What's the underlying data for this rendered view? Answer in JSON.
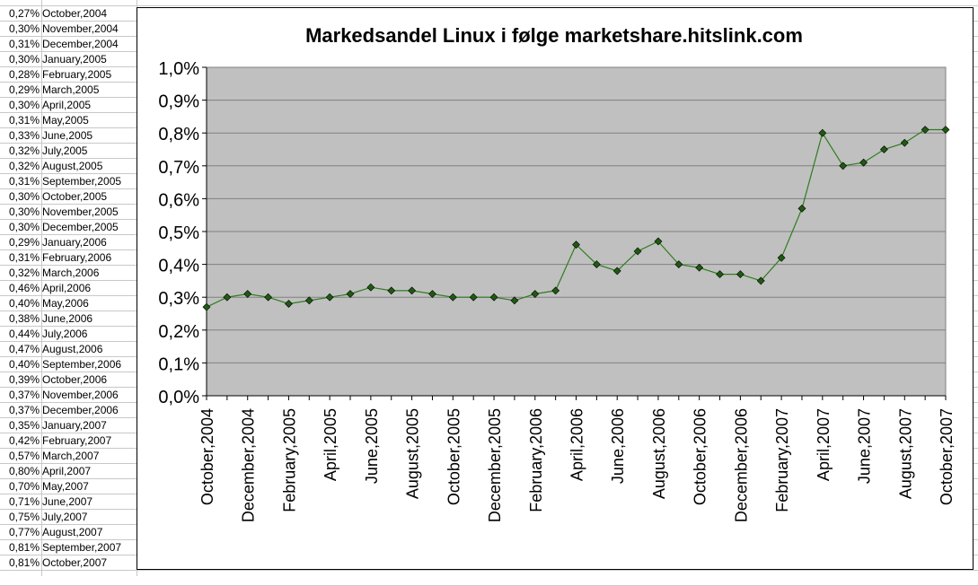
{
  "sheet": {
    "rows": [
      {
        "pct": "0,27%",
        "month": "October,2004"
      },
      {
        "pct": "0,30%",
        "month": "November,2004"
      },
      {
        "pct": "0,31%",
        "month": "December,2004"
      },
      {
        "pct": "0,30%",
        "month": "January,2005"
      },
      {
        "pct": "0,28%",
        "month": "February,2005"
      },
      {
        "pct": "0,29%",
        "month": "March,2005"
      },
      {
        "pct": "0,30%",
        "month": "April,2005"
      },
      {
        "pct": "0,31%",
        "month": "May,2005"
      },
      {
        "pct": "0,33%",
        "month": "June,2005"
      },
      {
        "pct": "0,32%",
        "month": "July,2005"
      },
      {
        "pct": "0,32%",
        "month": "August,2005"
      },
      {
        "pct": "0,31%",
        "month": "September,2005"
      },
      {
        "pct": "0,30%",
        "month": "October,2005"
      },
      {
        "pct": "0,30%",
        "month": "November,2005"
      },
      {
        "pct": "0,30%",
        "month": "December,2005"
      },
      {
        "pct": "0,29%",
        "month": "January,2006"
      },
      {
        "pct": "0,31%",
        "month": "February,2006"
      },
      {
        "pct": "0,32%",
        "month": "March,2006"
      },
      {
        "pct": "0,46%",
        "month": "April,2006"
      },
      {
        "pct": "0,40%",
        "month": "May,2006"
      },
      {
        "pct": "0,38%",
        "month": "June,2006"
      },
      {
        "pct": "0,44%",
        "month": "July,2006"
      },
      {
        "pct": "0,47%",
        "month": "August,2006"
      },
      {
        "pct": "0,40%",
        "month": "September,2006"
      },
      {
        "pct": "0,39%",
        "month": "October,2006"
      },
      {
        "pct": "0,37%",
        "month": "November,2006"
      },
      {
        "pct": "0,37%",
        "month": "December,2006"
      },
      {
        "pct": "0,35%",
        "month": "January,2007"
      },
      {
        "pct": "0,42%",
        "month": "February,2007"
      },
      {
        "pct": "0,57%",
        "month": "March,2007"
      },
      {
        "pct": "0,80%",
        "month": "April,2007"
      },
      {
        "pct": "0,70%",
        "month": "May,2007"
      },
      {
        "pct": "0,71%",
        "month": "June,2007"
      },
      {
        "pct": "0,75%",
        "month": "July,2007"
      },
      {
        "pct": "0,77%",
        "month": "August,2007"
      },
      {
        "pct": "0,81%",
        "month": "September,2007"
      },
      {
        "pct": "0,81%",
        "month": "October,2007"
      }
    ]
  },
  "chart_data": {
    "type": "line",
    "title": "Markedsandel Linux i følge marketshare.hitslink.com",
    "xlabel": "",
    "ylabel": "",
    "categories": [
      "October,2004",
      "November,2004",
      "December,2004",
      "January,2005",
      "February,2005",
      "March,2005",
      "April,2005",
      "May,2005",
      "June,2005",
      "July,2005",
      "August,2005",
      "September,2005",
      "October,2005",
      "November,2005",
      "December,2005",
      "January,2006",
      "February,2006",
      "March,2006",
      "April,2006",
      "May,2006",
      "June,2006",
      "July,2006",
      "August,2006",
      "September,2006",
      "October,2006",
      "November,2006",
      "December,2006",
      "January,2007",
      "February,2007",
      "March,2007",
      "April,2007",
      "May,2007",
      "June,2007",
      "July,2007",
      "August,2007",
      "September,2007",
      "October,2007"
    ],
    "x_tick_labels": [
      "October,2004",
      "December,2004",
      "February,2005",
      "April,2005",
      "June,2005",
      "August,2005",
      "October,2005",
      "December,2005",
      "February,2006",
      "April,2006",
      "June,2006",
      "August,2006",
      "October,2006",
      "December,2006",
      "February,2007",
      "April,2007",
      "June,2007",
      "August,2007",
      "October,2007"
    ],
    "series": [
      {
        "values": [
          0.27,
          0.3,
          0.31,
          0.3,
          0.28,
          0.29,
          0.3,
          0.31,
          0.33,
          0.32,
          0.32,
          0.31,
          0.3,
          0.3,
          0.3,
          0.29,
          0.31,
          0.32,
          0.46,
          0.4,
          0.38,
          0.44,
          0.47,
          0.4,
          0.39,
          0.37,
          0.37,
          0.35,
          0.42,
          0.57,
          0.8,
          0.7,
          0.71,
          0.75,
          0.77,
          0.81,
          0.81
        ]
      }
    ],
    "ylim": [
      0,
      1.0
    ],
    "y_tick_labels": [
      "0,0%",
      "0,1%",
      "0,2%",
      "0,3%",
      "0,4%",
      "0,5%",
      "0,6%",
      "0,7%",
      "0,8%",
      "0,9%",
      "1,0%"
    ],
    "grid": true,
    "legend": "none",
    "colors": {
      "plot_background": "#c0c0c0",
      "line": "#2e7d1e",
      "marker": "#1f5a12",
      "gridline": "#808080"
    }
  }
}
